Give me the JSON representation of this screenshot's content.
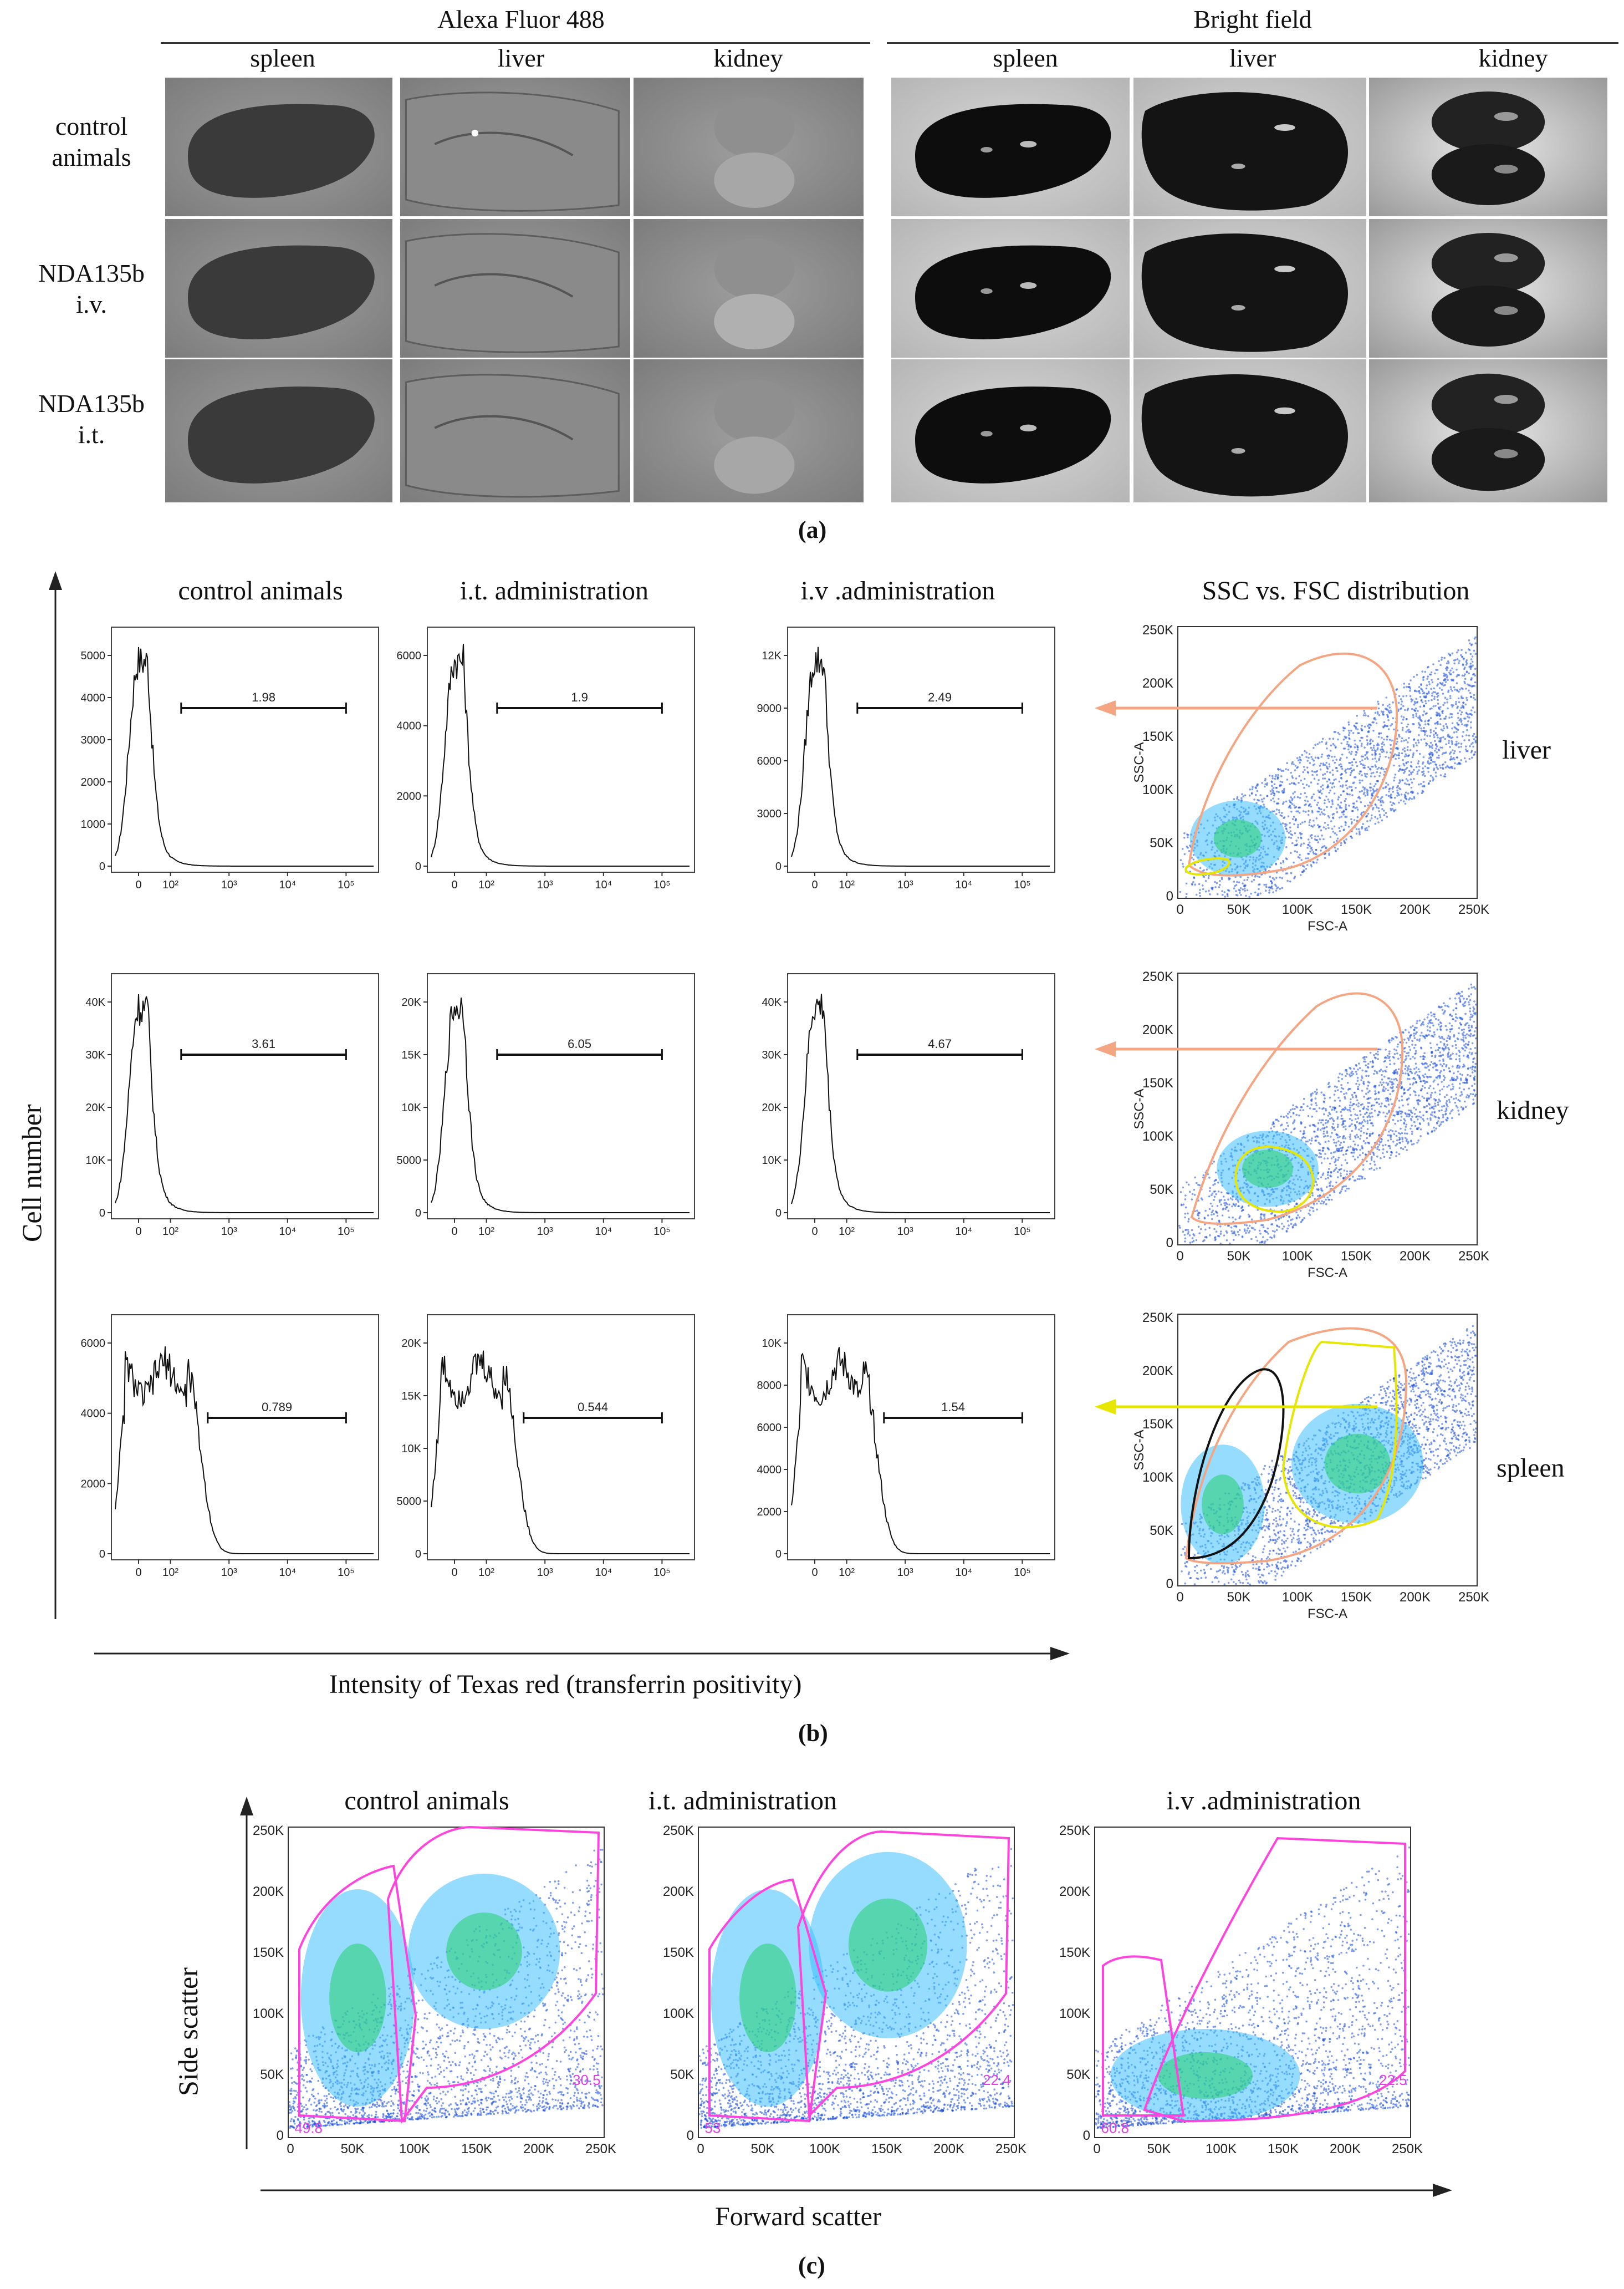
{
  "panel_a": {
    "label": "(a)",
    "groups": [
      {
        "title": "Alexa Fluor 488",
        "columns": [
          "spleen",
          "liver",
          "kidney"
        ]
      },
      {
        "title": "Bright field",
        "columns": [
          "spleen",
          "liver",
          "kidney"
        ]
      }
    ],
    "rows": [
      "control\nanimals",
      "NDA135b\ni.v.",
      "NDA135b\ni.t."
    ]
  },
  "panel_b": {
    "label": "(b)",
    "column_titles": [
      "control animals",
      "i.t. administration",
      "i.v .administration",
      "SSC vs. FSC distribution"
    ],
    "y_axis_label": "Cell number",
    "x_axis_label": "Intensity of Texas red (transferrin positivity)",
    "row_labels": [
      "liver",
      "kidney",
      "spleen"
    ],
    "x_ticks": [
      "0",
      "10²",
      "10³",
      "10⁴",
      "10⁵"
    ],
    "histograms": [
      {
        "row": "liver",
        "col": "control animals",
        "y_ticks": [
          "0",
          "1000",
          "2000",
          "3000",
          "4000",
          "5000"
        ],
        "gate": "1.98"
      },
      {
        "row": "liver",
        "col": "i.t. administration",
        "y_ticks": [
          "0",
          "2000",
          "4000",
          "6000"
        ],
        "gate": "1.9"
      },
      {
        "row": "liver",
        "col": "i.v .administration",
        "y_ticks": [
          "0",
          "3000",
          "6000",
          "9000",
          "12K"
        ],
        "gate": "2.49"
      },
      {
        "row": "kidney",
        "col": "control animals",
        "y_ticks": [
          "0",
          "10K",
          "20K",
          "30K",
          "40K"
        ],
        "gate": "3.61"
      },
      {
        "row": "kidney",
        "col": "i.t. administration",
        "y_ticks": [
          "0",
          "5000",
          "10K",
          "15K",
          "20K"
        ],
        "gate": "6.05"
      },
      {
        "row": "kidney",
        "col": "i.v .administration",
        "y_ticks": [
          "0",
          "10K",
          "20K",
          "30K",
          "40K"
        ],
        "gate": "4.67"
      },
      {
        "row": "spleen",
        "col": "control animals",
        "y_ticks": [
          "0",
          "2000",
          "4000",
          "6000"
        ],
        "gate": "0.789"
      },
      {
        "row": "spleen",
        "col": "i.t. administration",
        "y_ticks": [
          "0",
          "5000",
          "10K",
          "15K",
          "20K"
        ],
        "gate": "0.544"
      },
      {
        "row": "spleen",
        "col": "i.v .administration",
        "y_ticks": [
          "0",
          "2000",
          "4000",
          "6000",
          "8000",
          "10K"
        ],
        "gate": "1.54"
      }
    ],
    "scatter_ticks": [
      "0",
      "50K",
      "100K",
      "150K",
      "200K",
      "250K"
    ],
    "scatter_xlabel": "FSC-A",
    "scatter_ylabel": "SSC-A"
  },
  "panel_c": {
    "label": "(c)",
    "column_titles": [
      "control animals",
      "i.t. administration",
      "i.v .administration"
    ],
    "y_axis_label": "Side scatter",
    "x_axis_label": "Forward scatter",
    "ticks": [
      "0",
      "50K",
      "100K",
      "150K",
      "200K",
      "250K"
    ],
    "plots": [
      {
        "name": "control animals",
        "pct_left": "49.8",
        "pct_right": "30.5"
      },
      {
        "name": "i.t. administration",
        "pct_left": "53",
        "pct_right": "22.4"
      },
      {
        "name": "i.v .administration",
        "pct_left": "60.8",
        "pct_right": "22.5"
      }
    ]
  },
  "colors": {
    "gate_orange": "#f4a582",
    "gate_yellow": "#e6e600",
    "gate_magenta": "#ff44dd",
    "dots": "#1a4fd8",
    "core": "#2fd07a"
  }
}
